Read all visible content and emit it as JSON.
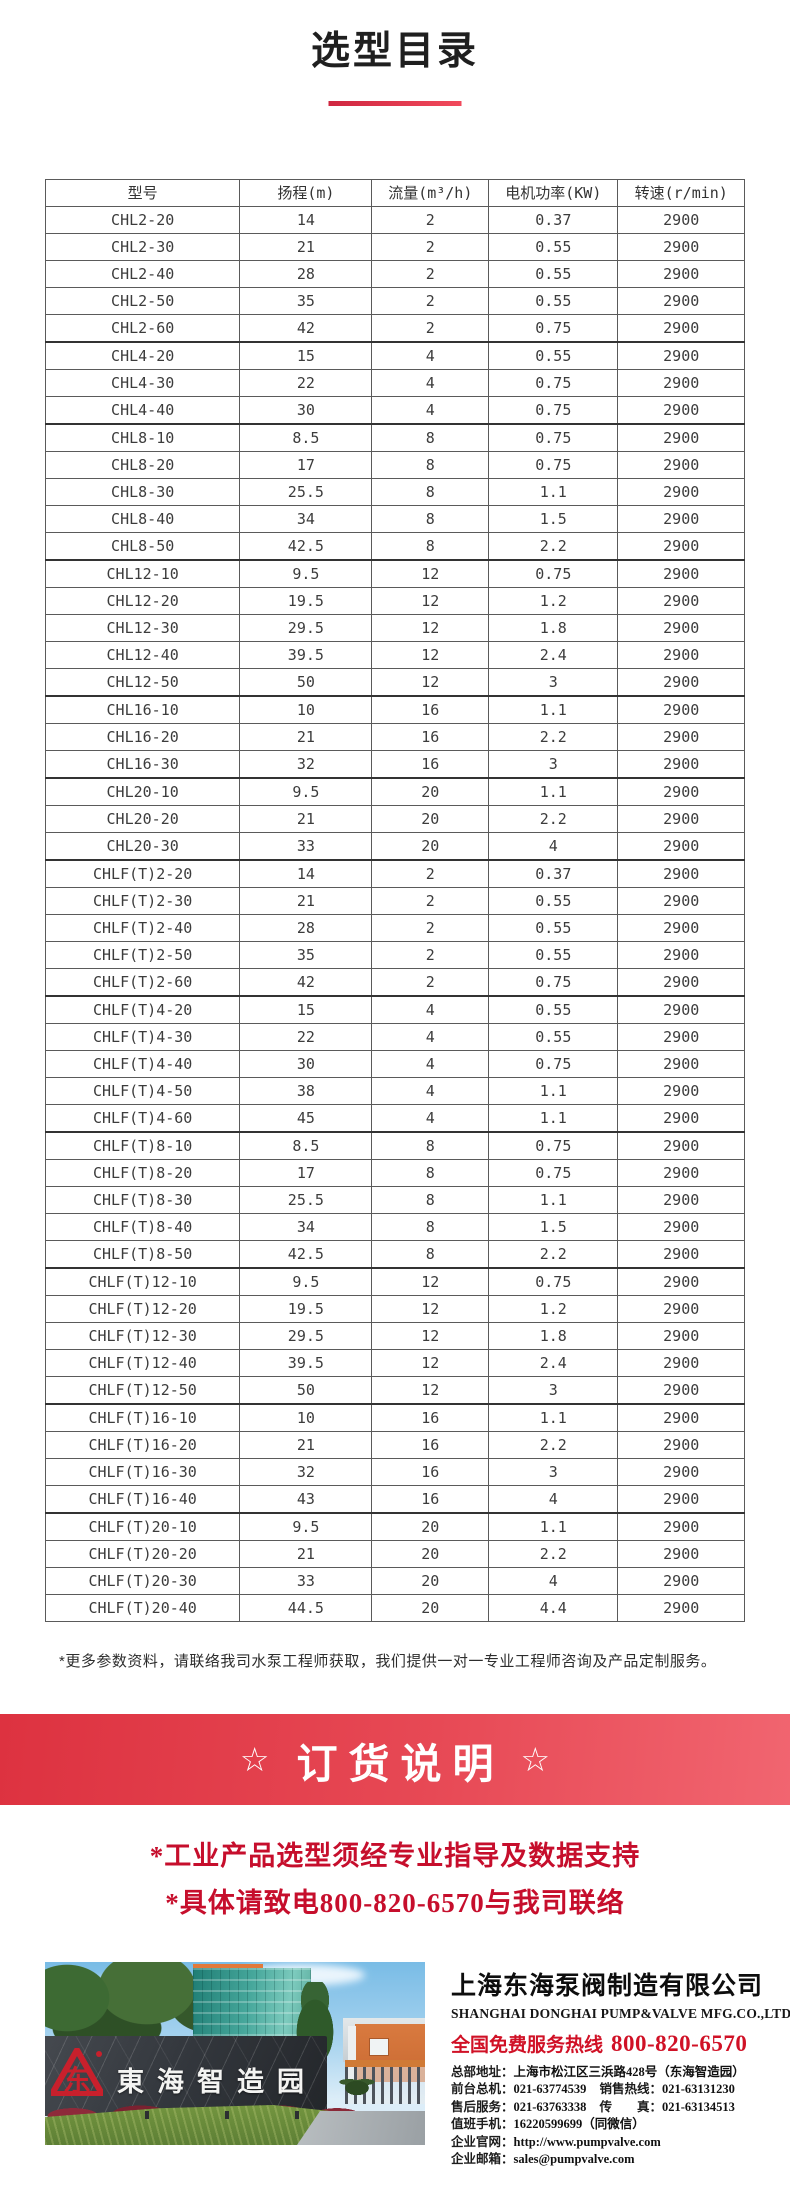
{
  "page": {
    "title": "选型目录"
  },
  "table": {
    "headers": [
      "型号",
      "扬程(m)",
      "流量(m³/h)",
      "电机功率(KW)",
      "转速(r/min)"
    ],
    "rows": [
      [
        "CHL2-20",
        "14",
        "2",
        "0.37",
        "2900"
      ],
      [
        "CHL2-30",
        "21",
        "2",
        "0.55",
        "2900"
      ],
      [
        "CHL2-40",
        "28",
        "2",
        "0.55",
        "2900"
      ],
      [
        "CHL2-50",
        "35",
        "2",
        "0.55",
        "2900"
      ],
      [
        "CHL2-60",
        "42",
        "2",
        "0.75",
        "2900"
      ],
      [
        "CHL4-20",
        "15",
        "4",
        "0.55",
        "2900"
      ],
      [
        "CHL4-30",
        "22",
        "4",
        "0.75",
        "2900"
      ],
      [
        "CHL4-40",
        "30",
        "4",
        "0.75",
        "2900"
      ],
      [
        "CHL8-10",
        "8.5",
        "8",
        "0.75",
        "2900"
      ],
      [
        "CHL8-20",
        "17",
        "8",
        "0.75",
        "2900"
      ],
      [
        "CHL8-30",
        "25.5",
        "8",
        "1.1",
        "2900"
      ],
      [
        "CHL8-40",
        "34",
        "8",
        "1.5",
        "2900"
      ],
      [
        "CHL8-50",
        "42.5",
        "8",
        "2.2",
        "2900"
      ],
      [
        "CHL12-10",
        "9.5",
        "12",
        "0.75",
        "2900"
      ],
      [
        "CHL12-20",
        "19.5",
        "12",
        "1.2",
        "2900"
      ],
      [
        "CHL12-30",
        "29.5",
        "12",
        "1.8",
        "2900"
      ],
      [
        "CHL12-40",
        "39.5",
        "12",
        "2.4",
        "2900"
      ],
      [
        "CHL12-50",
        "50",
        "12",
        "3",
        "2900"
      ],
      [
        "CHL16-10",
        "10",
        "16",
        "1.1",
        "2900"
      ],
      [
        "CHL16-20",
        "21",
        "16",
        "2.2",
        "2900"
      ],
      [
        "CHL16-30",
        "32",
        "16",
        "3",
        "2900"
      ],
      [
        "CHL20-10",
        "9.5",
        "20",
        "1.1",
        "2900"
      ],
      [
        "CHL20-20",
        "21",
        "20",
        "2.2",
        "2900"
      ],
      [
        "CHL20-30",
        "33",
        "20",
        "4",
        "2900"
      ],
      [
        "CHLF(T)2-20",
        "14",
        "2",
        "0.37",
        "2900"
      ],
      [
        "CHLF(T)2-30",
        "21",
        "2",
        "0.55",
        "2900"
      ],
      [
        "CHLF(T)2-40",
        "28",
        "2",
        "0.55",
        "2900"
      ],
      [
        "CHLF(T)2-50",
        "35",
        "2",
        "0.55",
        "2900"
      ],
      [
        "CHLF(T)2-60",
        "42",
        "2",
        "0.75",
        "2900"
      ],
      [
        "CHLF(T)4-20",
        "15",
        "4",
        "0.55",
        "2900"
      ],
      [
        "CHLF(T)4-30",
        "22",
        "4",
        "0.55",
        "2900"
      ],
      [
        "CHLF(T)4-40",
        "30",
        "4",
        "0.75",
        "2900"
      ],
      [
        "CHLF(T)4-50",
        "38",
        "4",
        "1.1",
        "2900"
      ],
      [
        "CHLF(T)4-60",
        "45",
        "4",
        "1.1",
        "2900"
      ],
      [
        "CHLF(T)8-10",
        "8.5",
        "8",
        "0.75",
        "2900"
      ],
      [
        "CHLF(T)8-20",
        "17",
        "8",
        "0.75",
        "2900"
      ],
      [
        "CHLF(T)8-30",
        "25.5",
        "8",
        "1.1",
        "2900"
      ],
      [
        "CHLF(T)8-40",
        "34",
        "8",
        "1.5",
        "2900"
      ],
      [
        "CHLF(T)8-50",
        "42.5",
        "8",
        "2.2",
        "2900"
      ],
      [
        "CHLF(T)12-10",
        "9.5",
        "12",
        "0.75",
        "2900"
      ],
      [
        "CHLF(T)12-20",
        "19.5",
        "12",
        "1.2",
        "2900"
      ],
      [
        "CHLF(T)12-30",
        "29.5",
        "12",
        "1.8",
        "2900"
      ],
      [
        "CHLF(T)12-40",
        "39.5",
        "12",
        "2.4",
        "2900"
      ],
      [
        "CHLF(T)12-50",
        "50",
        "12",
        "3",
        "2900"
      ],
      [
        "CHLF(T)16-10",
        "10",
        "16",
        "1.1",
        "2900"
      ],
      [
        "CHLF(T)16-20",
        "21",
        "16",
        "2.2",
        "2900"
      ],
      [
        "CHLF(T)16-30",
        "32",
        "16",
        "3",
        "2900"
      ],
      [
        "CHLF(T)16-40",
        "43",
        "16",
        "4",
        "2900"
      ],
      [
        "CHLF(T)20-10",
        "9.5",
        "20",
        "1.1",
        "2900"
      ],
      [
        "CHLF(T)20-20",
        "21",
        "20",
        "2.2",
        "2900"
      ],
      [
        "CHLF(T)20-30",
        "33",
        "20",
        "4",
        "2900"
      ],
      [
        "CHLF(T)20-40",
        "44.5",
        "20",
        "4.4",
        "2900"
      ]
    ]
  },
  "footnote": "*更多参数资料，请联络我司水泵工程师获取，我们提供一对一专业工程师咨询及产品定制服务。",
  "order_banner": {
    "title": "订货说明",
    "star": "☆"
  },
  "order_notes": [
    "*工业产品选型须经专业指导及数据支持",
    "*具体请致电800-820-6570与我司联络"
  ],
  "company": {
    "photo_sign_text": "東海智造园",
    "logo_glyph": "东",
    "name_cn": "上海东海泵阀制造有限公司",
    "name_en": "SHANGHAI DONGHAI PUMP&VALVE MFG.CO.,LTD.",
    "hotline_label": "全国免费服务热线",
    "hotline_number": "800-820-6570",
    "contact_lines": [
      [
        {
          "label": "总部地址：",
          "value": "上海市松江区三浜路428号（东海智造园）"
        }
      ],
      [
        {
          "label": "前台总机：",
          "value": "021-63774539"
        },
        {
          "label": "销售热线：",
          "value": "021-63131230"
        }
      ],
      [
        {
          "label": "售后服务：",
          "value": "021-63763338"
        },
        {
          "label": "传　　真：",
          "value": "021-63134513"
        }
      ],
      [
        {
          "label": "值班手机：",
          "value": "16220599699（同微信）"
        }
      ],
      [
        {
          "label": "企业官网：",
          "value": "http://www.pumpvalve.com",
          "name": "website-link",
          "interactable": true
        }
      ],
      [
        {
          "label": "企业邮箱：",
          "value": "sales@pumpvalve.com",
          "name": "email-link",
          "interactable": true
        }
      ]
    ]
  },
  "colors": {
    "accent_red": "#e03c48",
    "note_red": "#c60e2c",
    "hotline_red": "#d01126",
    "underline_red": "#e8394e",
    "table_border": "#5a5a5a"
  }
}
